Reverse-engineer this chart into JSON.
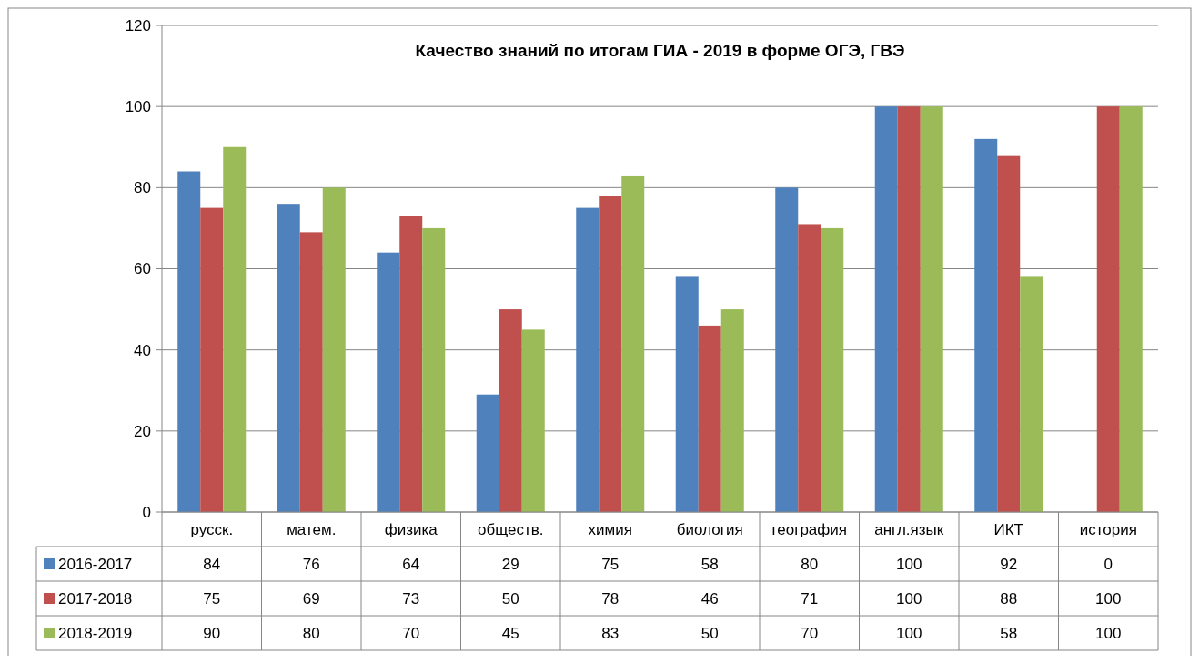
{
  "chart_data": {
    "type": "bar",
    "title": "Качество знаний по итогам ГИА - 2019 в форме ОГЭ, ГВЭ",
    "categories": [
      "русск.",
      "матем.",
      "физика",
      "обществ.",
      "химия",
      "биология",
      "география",
      "англ.язык",
      "ИКТ",
      "история"
    ],
    "series": [
      {
        "name": "2016-2017",
        "color": "#4f81bd",
        "values": [
          84,
          76,
          64,
          29,
          75,
          58,
          80,
          100,
          92,
          0
        ]
      },
      {
        "name": "2017-2018",
        "color": "#c0504d",
        "values": [
          75,
          69,
          73,
          50,
          78,
          46,
          71,
          100,
          88,
          100
        ]
      },
      {
        "name": "2018-2019",
        "color": "#9bbb59",
        "values": [
          90,
          80,
          70,
          45,
          83,
          50,
          70,
          100,
          58,
          100
        ]
      }
    ],
    "ylim": [
      0,
      120
    ],
    "yticks": [
      0,
      20,
      40,
      60,
      80,
      100,
      120
    ],
    "grid": "y",
    "legend": "bottom",
    "data_labels": true
  }
}
